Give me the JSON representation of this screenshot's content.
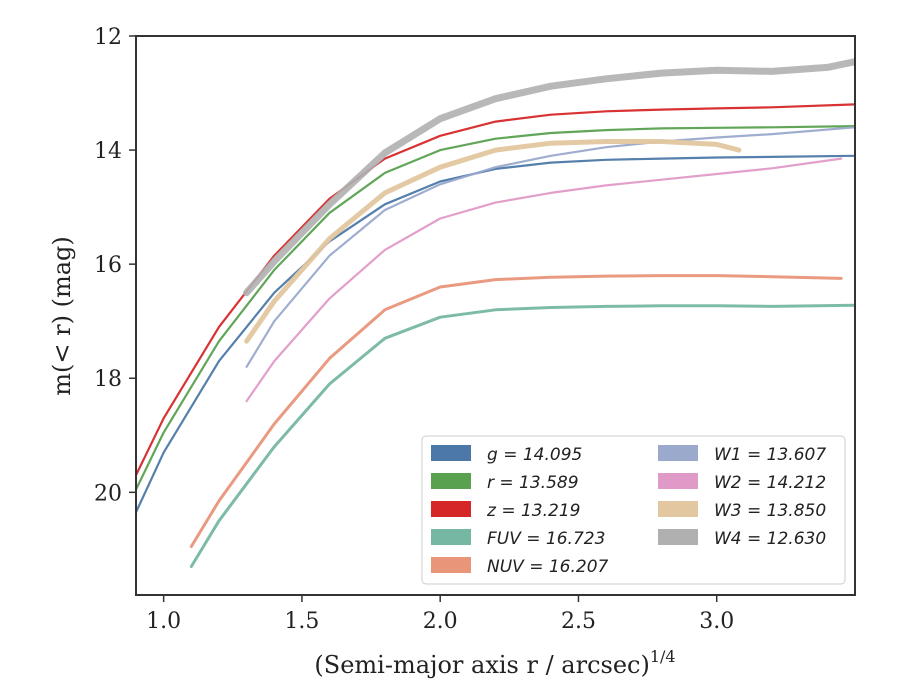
{
  "chart_data": {
    "type": "line",
    "xlabel": "(Semi-major axis r / arcsec)",
    "xlabel_sup": "1/4",
    "ylabel": "m(< r) (mag)",
    "xlim": [
      0.9,
      3.5
    ],
    "ylim": [
      21.8,
      12.0
    ],
    "y_inverted": true,
    "x_ticks": [
      1.0,
      1.5,
      2.0,
      2.5,
      3.0
    ],
    "x_tick_labels": [
      "1.0",
      "1.5",
      "2.0",
      "2.5",
      "3.0"
    ],
    "y_ticks": [
      12,
      14,
      16,
      18,
      20
    ],
    "y_tick_labels": [
      "12",
      "14",
      "16",
      "18",
      "20"
    ],
    "grid": false,
    "legend_placement": "lower-right",
    "series": [
      {
        "name": "g",
        "label": "g = 14.095",
        "color": "#4c78a8",
        "points": [
          [
            0.9,
            20.35
          ],
          [
            1.0,
            19.3
          ],
          [
            1.2,
            17.7
          ],
          [
            1.4,
            16.5
          ],
          [
            1.6,
            15.6
          ],
          [
            1.8,
            14.95
          ],
          [
            2.0,
            14.55
          ],
          [
            2.2,
            14.33
          ],
          [
            2.4,
            14.22
          ],
          [
            2.6,
            14.17
          ],
          [
            2.8,
            14.15
          ],
          [
            3.0,
            14.13
          ],
          [
            3.2,
            14.12
          ],
          [
            3.5,
            14.1
          ]
        ]
      },
      {
        "name": "r",
        "label": "r = 13.589",
        "color": "#59a14f",
        "points": [
          [
            0.9,
            19.95
          ],
          [
            1.0,
            18.95
          ],
          [
            1.2,
            17.35
          ],
          [
            1.4,
            16.1
          ],
          [
            1.6,
            15.1
          ],
          [
            1.8,
            14.4
          ],
          [
            2.0,
            14.0
          ],
          [
            2.2,
            13.8
          ],
          [
            2.4,
            13.7
          ],
          [
            2.6,
            13.65
          ],
          [
            2.8,
            13.62
          ],
          [
            3.0,
            13.61
          ],
          [
            3.2,
            13.6
          ],
          [
            3.5,
            13.58
          ]
        ]
      },
      {
        "name": "z",
        "label": "z = 13.219",
        "color": "#d62728",
        "points": [
          [
            0.9,
            19.7
          ],
          [
            1.0,
            18.7
          ],
          [
            1.2,
            17.1
          ],
          [
            1.4,
            15.85
          ],
          [
            1.6,
            14.85
          ],
          [
            1.8,
            14.15
          ],
          [
            2.0,
            13.75
          ],
          [
            2.2,
            13.5
          ],
          [
            2.4,
            13.38
          ],
          [
            2.6,
            13.32
          ],
          [
            2.8,
            13.29
          ],
          [
            3.0,
            13.27
          ],
          [
            3.2,
            13.25
          ],
          [
            3.5,
            13.2
          ]
        ]
      },
      {
        "name": "FUV",
        "label": "FUV = 16.723",
        "color": "#76b7a3",
        "points": [
          [
            1.1,
            21.3
          ],
          [
            1.2,
            20.5
          ],
          [
            1.4,
            19.2
          ],
          [
            1.6,
            18.1
          ],
          [
            1.8,
            17.3
          ],
          [
            2.0,
            16.93
          ],
          [
            2.2,
            16.8
          ],
          [
            2.4,
            16.76
          ],
          [
            2.6,
            16.74
          ],
          [
            2.8,
            16.73
          ],
          [
            3.0,
            16.73
          ],
          [
            3.2,
            16.74
          ],
          [
            3.5,
            16.72
          ]
        ]
      },
      {
        "name": "NUV",
        "label": "NUV = 16.207",
        "color": "#e8957a",
        "points": [
          [
            1.1,
            20.95
          ],
          [
            1.2,
            20.15
          ],
          [
            1.4,
            18.8
          ],
          [
            1.6,
            17.65
          ],
          [
            1.8,
            16.8
          ],
          [
            2.0,
            16.4
          ],
          [
            2.2,
            16.27
          ],
          [
            2.4,
            16.23
          ],
          [
            2.6,
            16.21
          ],
          [
            2.8,
            16.2
          ],
          [
            3.0,
            16.2
          ],
          [
            3.2,
            16.22
          ],
          [
            3.45,
            16.25
          ]
        ]
      },
      {
        "name": "W1",
        "label": "W1 = 13.607",
        "color": "#9aa9cc",
        "points": [
          [
            1.3,
            17.8
          ],
          [
            1.4,
            17.0
          ],
          [
            1.6,
            15.85
          ],
          [
            1.8,
            15.05
          ],
          [
            2.0,
            14.6
          ],
          [
            2.2,
            14.3
          ],
          [
            2.4,
            14.1
          ],
          [
            2.6,
            13.95
          ],
          [
            2.8,
            13.85
          ],
          [
            3.0,
            13.78
          ],
          [
            3.2,
            13.72
          ],
          [
            3.5,
            13.6
          ]
        ]
      },
      {
        "name": "W2",
        "label": "W2 = 14.212",
        "color": "#e09ac7",
        "points": [
          [
            1.3,
            18.4
          ],
          [
            1.4,
            17.7
          ],
          [
            1.6,
            16.6
          ],
          [
            1.8,
            15.75
          ],
          [
            2.0,
            15.2
          ],
          [
            2.2,
            14.92
          ],
          [
            2.4,
            14.75
          ],
          [
            2.6,
            14.62
          ],
          [
            2.8,
            14.52
          ],
          [
            3.0,
            14.42
          ],
          [
            3.2,
            14.32
          ],
          [
            3.45,
            14.15
          ]
        ]
      },
      {
        "name": "W3",
        "label": "W3 = 13.850",
        "color": "#e2c7a0",
        "points": [
          [
            1.3,
            17.35
          ],
          [
            1.4,
            16.65
          ],
          [
            1.6,
            15.55
          ],
          [
            1.8,
            14.75
          ],
          [
            2.0,
            14.3
          ],
          [
            2.2,
            14.0
          ],
          [
            2.4,
            13.88
          ],
          [
            2.6,
            13.85
          ],
          [
            2.8,
            13.85
          ],
          [
            3.0,
            13.9
          ],
          [
            3.08,
            14.0
          ]
        ]
      },
      {
        "name": "W4",
        "label": "W4 = 12.630",
        "color": "#b0b0b0",
        "points": [
          [
            1.3,
            16.5
          ],
          [
            1.4,
            15.95
          ],
          [
            1.6,
            14.95
          ],
          [
            1.8,
            14.05
          ],
          [
            2.0,
            13.45
          ],
          [
            2.2,
            13.1
          ],
          [
            2.4,
            12.88
          ],
          [
            2.6,
            12.75
          ],
          [
            2.8,
            12.65
          ],
          [
            3.0,
            12.6
          ],
          [
            3.2,
            12.62
          ],
          [
            3.4,
            12.55
          ],
          [
            3.5,
            12.45
          ]
        ]
      }
    ]
  }
}
